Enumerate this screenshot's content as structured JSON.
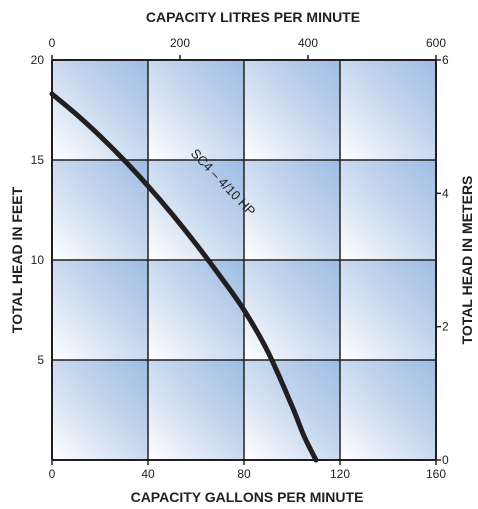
{
  "chart_data": {
    "type": "line",
    "top_axis_title": "CAPACITY LITRES PER MINUTE",
    "bottom_axis_title": "CAPACITY GALLONS PER MINUTE",
    "left_axis_title": "TOTAL HEAD IN FEET",
    "right_axis_title": "TOTAL HEAD IN METERS",
    "bottom_ticks": [
      "0",
      "40",
      "80",
      "120",
      "160"
    ],
    "top_ticks": [
      "0",
      "200",
      "400",
      "600"
    ],
    "left_ticks": [
      "20",
      "15",
      "10",
      "5"
    ],
    "right_ticks": [
      "6",
      "4",
      "2",
      "0"
    ],
    "xlim": [
      0,
      160
    ],
    "ylim": [
      0,
      20
    ],
    "series": [
      {
        "name": "SC4 – 4/10 HP",
        "x": [
          0,
          10,
          20,
          30,
          40,
          50,
          60,
          70,
          80,
          90,
          100,
          105,
          110
        ],
        "y": [
          18.3,
          17.3,
          16.2,
          15.0,
          13.7,
          12.3,
          10.8,
          9.2,
          7.5,
          5.4,
          2.7,
          1.2,
          0
        ]
      }
    ],
    "grid": true,
    "colors": {
      "curve": "#231f20",
      "grid": "#231f20",
      "panel_light": "#ffffff",
      "panel_dark": "#9dbce3"
    }
  }
}
